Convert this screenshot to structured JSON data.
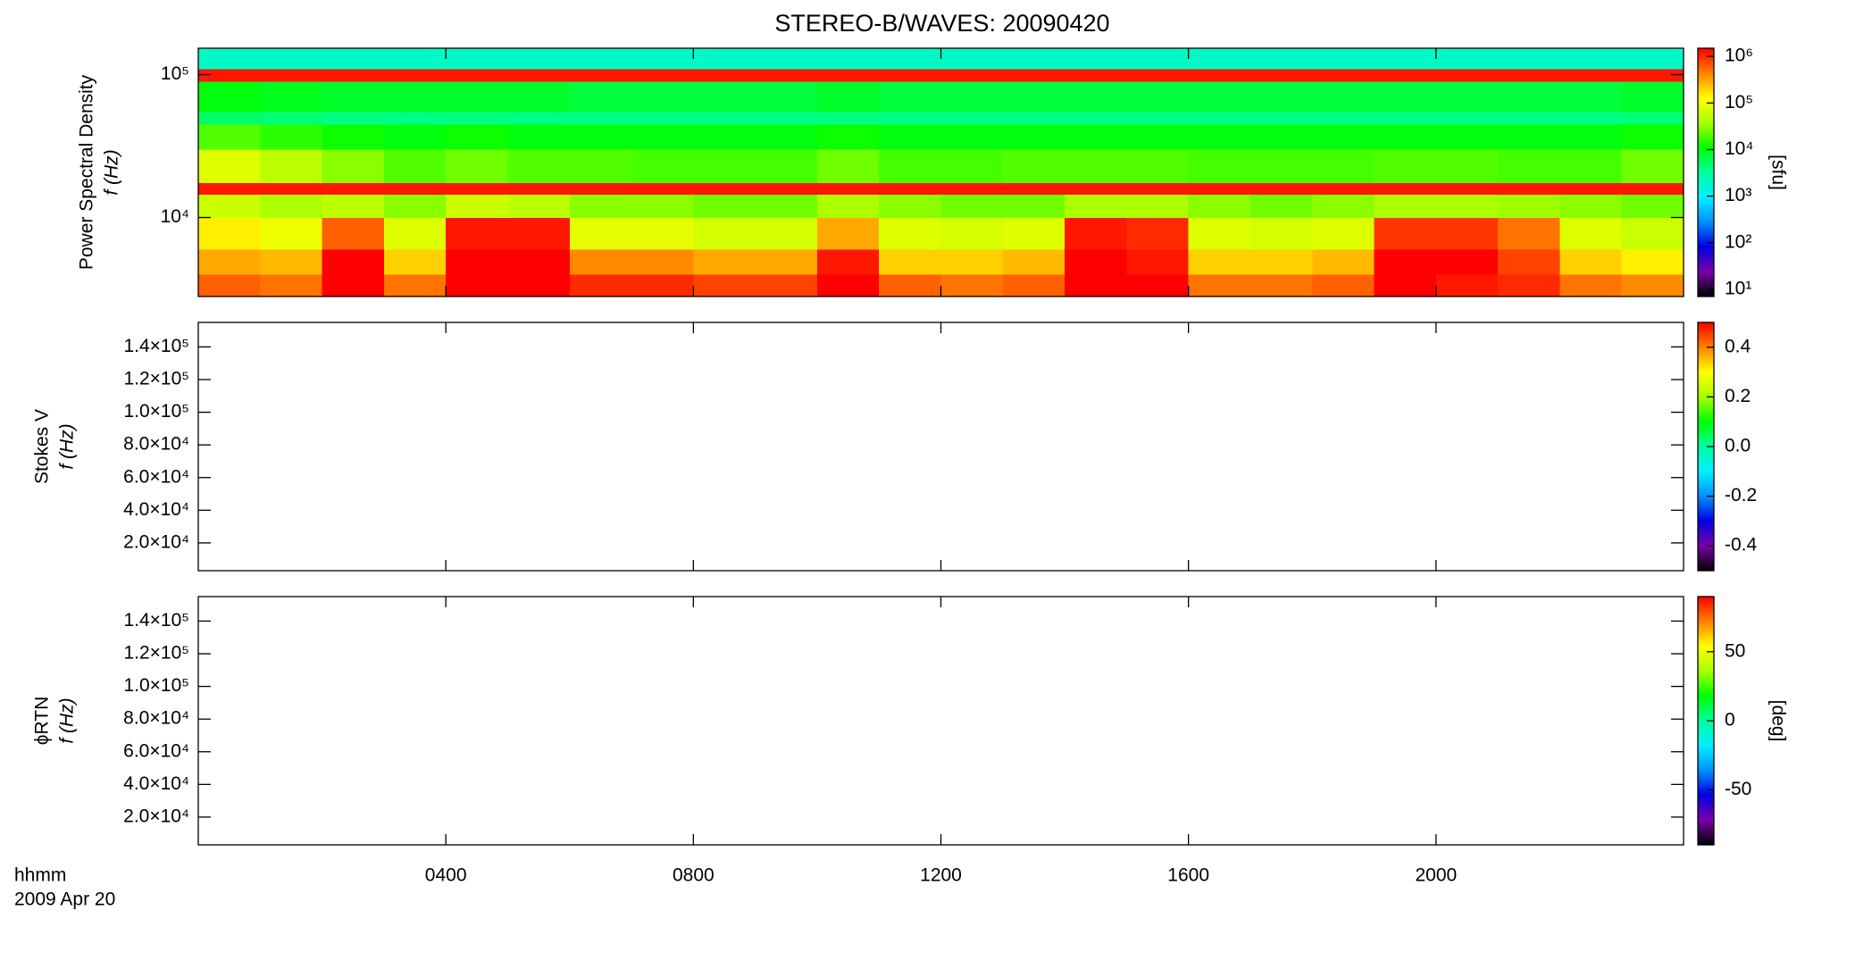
{
  "chart_data": [
    {
      "type": "spectrogram",
      "title": "STEREO-B/WAVES: 20090420",
      "ylabel": [
        "Power Spectral Density",
        "f (Hz)"
      ],
      "xlim": [
        0,
        24
      ],
      "xticks": [
        4,
        8,
        12,
        16,
        20
      ],
      "ylog": true,
      "ylim": [
        2800,
        153000
      ],
      "yticks": [
        {
          "value": 10000,
          "label": "10⁴"
        },
        {
          "value": 100000,
          "label": "10⁵"
        }
      ],
      "colormap": [
        "#000000",
        "#7a00a8",
        "#0000e0",
        "#0090ff",
        "#00f0ff",
        "#00ffa0",
        "#00ff00",
        "#a8ff00",
        "#ffff00",
        "#ff8000",
        "#ff0000"
      ],
      "colorbar": {
        "label": "[sfu]",
        "log": true,
        "lim": [
          7,
          1500000
        ],
        "ticks": [
          {
            "value": 10,
            "label": "10¹"
          },
          {
            "value": 100,
            "label": "10²"
          },
          {
            "value": 1000,
            "label": "10³"
          },
          {
            "value": 10000,
            "label": "10⁴"
          },
          {
            "value": 100000,
            "label": "10⁵"
          },
          {
            "value": 1000000,
            "label": "10⁶"
          }
        ]
      },
      "spectrogram": {
        "x_edges": [
          0,
          1,
          2,
          3,
          4,
          5,
          6,
          7,
          8,
          9,
          10,
          11,
          12,
          13,
          14,
          15,
          16,
          17,
          18,
          19,
          20,
          21,
          22,
          23,
          24
        ],
        "y_edges": [
          2800,
          4000,
          6000,
          10000,
          14500,
          17500,
          30000,
          45000,
          55000,
          90000,
          110000,
          153000
        ],
        "values": [
          [
            600000,
            500000,
            1500000,
            500000,
            1500000,
            1500000,
            1000000,
            1000000,
            800000,
            800000,
            1500000,
            600000,
            500000,
            600000,
            1500000,
            1500000,
            500000,
            500000,
            600000,
            1500000,
            1200000,
            1000000,
            500000,
            400000
          ],
          [
            300000,
            250000,
            1500000,
            200000,
            1500000,
            1500000,
            400000,
            400000,
            300000,
            300000,
            1200000,
            200000,
            200000,
            250000,
            1500000,
            1200000,
            200000,
            200000,
            250000,
            1500000,
            1500000,
            800000,
            200000,
            150000
          ],
          [
            150000,
            100000,
            600000,
            80000,
            1200000,
            1200000,
            90000,
            90000,
            70000,
            70000,
            300000,
            80000,
            70000,
            80000,
            1200000,
            1000000,
            80000,
            70000,
            80000,
            900000,
            900000,
            500000,
            80000,
            60000
          ],
          [
            60000,
            40000,
            50000,
            30000,
            60000,
            50000,
            30000,
            30000,
            25000,
            25000,
            40000,
            30000,
            25000,
            25000,
            40000,
            40000,
            30000,
            25000,
            30000,
            40000,
            40000,
            35000,
            30000,
            25000
          ],
          [
            1200000,
            1200000,
            1200000,
            1200000,
            1200000,
            1200000,
            1200000,
            1200000,
            1200000,
            1200000,
            1200000,
            1200000,
            1200000,
            1200000,
            1200000,
            1200000,
            1200000,
            1200000,
            1200000,
            1200000,
            1200000,
            1200000,
            1200000,
            1200000
          ],
          [
            80000,
            50000,
            30000,
            20000,
            25000,
            20000,
            20000,
            18000,
            18000,
            18000,
            25000,
            18000,
            18000,
            20000,
            20000,
            20000,
            18000,
            18000,
            18000,
            20000,
            20000,
            18000,
            18000,
            25000
          ],
          [
            20000,
            15000,
            12000,
            10000,
            12000,
            10000,
            10000,
            10000,
            10000,
            10000,
            12000,
            10000,
            10000,
            10000,
            10000,
            10000,
            10000,
            10000,
            10000,
            10000,
            10000,
            10000,
            10000,
            12000
          ],
          [
            5000,
            4500,
            4000,
            4000,
            4000,
            4000,
            4000,
            4000,
            4000,
            4000,
            4000,
            4000,
            4000,
            4000,
            4000,
            4000,
            4000,
            4000,
            4000,
            4000,
            4000,
            4000,
            4000,
            4500
          ],
          [
            10000,
            9000,
            8000,
            8000,
            8000,
            8000,
            7000,
            7000,
            7000,
            7000,
            8000,
            7000,
            7000,
            7000,
            7000,
            7000,
            7000,
            7000,
            7000,
            7000,
            7000,
            7000,
            7000,
            8000
          ],
          [
            1200000,
            1200000,
            1200000,
            1200000,
            1200000,
            1200000,
            1200000,
            1200000,
            1200000,
            1200000,
            1200000,
            1200000,
            1200000,
            1200000,
            1200000,
            1200000,
            1200000,
            1200000,
            1200000,
            1200000,
            1200000,
            1200000,
            1200000,
            1200000
          ],
          [
            2000,
            2000,
            2000,
            2000,
            2000,
            2000,
            2000,
            2000,
            2000,
            2000,
            2000,
            2000,
            2000,
            2000,
            2000,
            2000,
            2000,
            2000,
            2000,
            2000,
            2000,
            2000,
            2000,
            2000
          ]
        ]
      }
    },
    {
      "type": "spectrogram",
      "ylabel": [
        "Stokes V",
        "f (Hz)"
      ],
      "xlim": [
        0,
        24
      ],
      "xticks": [
        4,
        8,
        12,
        16,
        20
      ],
      "ylim": [
        3000,
        155000
      ],
      "yticks": [
        {
          "value": 20000,
          "label": "2.0×10⁴"
        },
        {
          "value": 40000,
          "label": "4.0×10⁴"
        },
        {
          "value": 60000,
          "label": "6.0×10⁴"
        },
        {
          "value": 80000,
          "label": "8.0×10⁴"
        },
        {
          "value": 100000,
          "label": "1.0×10⁵"
        },
        {
          "value": 120000,
          "label": "1.2×10⁵"
        },
        {
          "value": 140000,
          "label": "1.4×10⁵"
        }
      ],
      "colormap": [
        "#000000",
        "#7a00a8",
        "#0000e0",
        "#0090ff",
        "#00f0ff",
        "#00ffa0",
        "#00ff00",
        "#a8ff00",
        "#ffff00",
        "#ff8000",
        "#ff0000"
      ],
      "colorbar": {
        "lim": [
          -0.5,
          0.5
        ],
        "ticks": [
          -0.4,
          -0.2,
          {
            "value": 0,
            "label": "0.0"
          },
          0.2,
          0.4
        ]
      }
    },
    {
      "type": "spectrogram",
      "ylabel": [
        "ϕRTN",
        "f (Hz)"
      ],
      "x_label": [
        "hhmm",
        "2009 Apr 20"
      ],
      "xlim": [
        0,
        24
      ],
      "xticks": [
        {
          "value": 4,
          "label": "0400"
        },
        {
          "value": 8,
          "label": "0800"
        },
        {
          "value": 12,
          "label": "1200"
        },
        {
          "value": 16,
          "label": "1600"
        },
        {
          "value": 20,
          "label": "2000"
        }
      ],
      "ylim": [
        3000,
        155000
      ],
      "yticks": [
        {
          "value": 20000,
          "label": "2.0×10⁴"
        },
        {
          "value": 40000,
          "label": "4.0×10⁴"
        },
        {
          "value": 60000,
          "label": "6.0×10⁴"
        },
        {
          "value": 80000,
          "label": "8.0×10⁴"
        },
        {
          "value": 100000,
          "label": "1.0×10⁵"
        },
        {
          "value": 120000,
          "label": "1.2×10⁵"
        },
        {
          "value": 140000,
          "label": "1.4×10⁵"
        }
      ],
      "colormap": [
        "#000000",
        "#7a00a8",
        "#0000e0",
        "#0090ff",
        "#00f0ff",
        "#00ffa0",
        "#00ff00",
        "#a8ff00",
        "#ffff00",
        "#ff8000",
        "#ff0000"
      ],
      "colorbar": {
        "label": "[deg]",
        "lim": [
          -90,
          90
        ],
        "ticks": [
          -50,
          0,
          50
        ]
      }
    }
  ]
}
